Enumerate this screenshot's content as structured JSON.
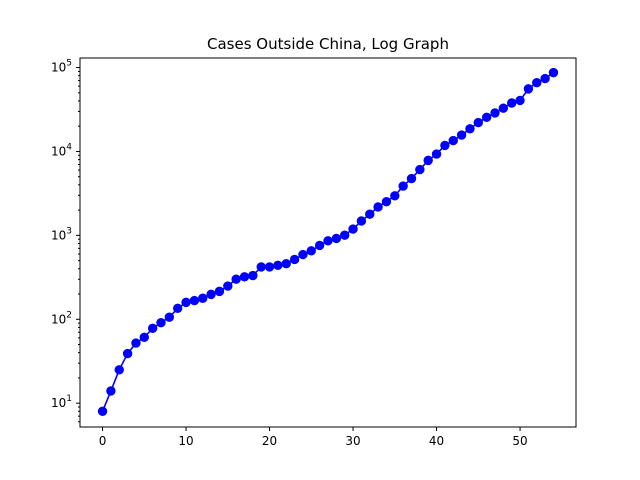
{
  "chart_data": {
    "type": "line",
    "title": "Cases Outside China, Log Graph",
    "xlabel": "",
    "ylabel": "",
    "y_scale": "log",
    "xlim": [
      -2.7,
      56.7
    ],
    "ylim": [
      5.2,
      130000
    ],
    "grid": false,
    "markers": "circle",
    "line_color": "#0000ff",
    "x_ticks": [
      0,
      10,
      20,
      30,
      40,
      50
    ],
    "y_ticks": [
      {
        "value": 10,
        "base": "10",
        "exp": "1"
      },
      {
        "value": 100,
        "base": "10",
        "exp": "2"
      },
      {
        "value": 1000,
        "base": "10",
        "exp": "3"
      },
      {
        "value": 10000,
        "base": "10",
        "exp": "4"
      },
      {
        "value": 100000,
        "base": "10",
        "exp": "5"
      }
    ],
    "series": [
      {
        "x": [
          0,
          1,
          2,
          3,
          4,
          5,
          6,
          7,
          8,
          9,
          10,
          11,
          12,
          13,
          14,
          15,
          16,
          17,
          18,
          19,
          20,
          21,
          22,
          23,
          24,
          25,
          26,
          27,
          28,
          29,
          30,
          31,
          32,
          33,
          34,
          35,
          36,
          37,
          38,
          39,
          40,
          41,
          42,
          43,
          44,
          45,
          46,
          47,
          48,
          49,
          50,
          51,
          52,
          53,
          54
        ],
        "y": [
          8,
          14,
          25,
          39,
          52,
          61,
          78,
          91,
          106,
          135,
          159,
          167,
          178,
          198,
          215,
          249,
          300,
          321,
          332,
          421,
          421,
          440,
          460,
          516,
          590,
          655,
          759,
          862,
          918,
          1004,
          1190,
          1484,
          1786,
          2179,
          2523,
          2961,
          3868,
          4750,
          6080,
          7830,
          9300,
          11800,
          13500,
          15700,
          18600,
          22100,
          25500,
          28800,
          32800,
          37800,
          40600,
          55700,
          66000,
          74000,
          87000
        ]
      }
    ]
  }
}
